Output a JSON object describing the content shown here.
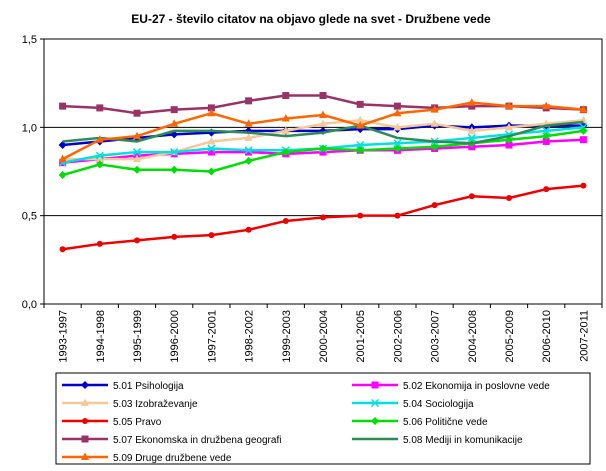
{
  "chart_data": {
    "type": "line",
    "title": "EU-27 - število citatov na objavo glede na svet - Družbene vede",
    "xlabel": "",
    "ylabel": "",
    "ylim": [
      0,
      1.5
    ],
    "yticks": [
      "0,0",
      "0,5",
      "1,0",
      "1,5"
    ],
    "ytick_values": [
      0,
      0.5,
      1.0,
      1.5
    ],
    "grid": "horizontal",
    "legend_position": "bottom",
    "categories": [
      "1993-1997",
      "1994-1998",
      "1995-1999",
      "1996-2000",
      "1997-2001",
      "1998-2002",
      "1999-2003",
      "2000-2004",
      "2001-2005",
      "2002-2006",
      "2003-2007",
      "2004-2008",
      "2005-2009",
      "2006-2010",
      "2007-2011"
    ],
    "series": [
      {
        "name": "5.01 Psihologija",
        "color": "#0000cc",
        "marker": "diamond",
        "values": [
          0.9,
          0.92,
          0.94,
          0.96,
          0.97,
          0.98,
          0.98,
          0.98,
          0.99,
          0.99,
          1.01,
          1.0,
          1.01,
          1.01,
          1.01
        ]
      },
      {
        "name": "5.02 Ekonomija in poslovne vede",
        "color": "#ff00ff",
        "marker": "square",
        "values": [
          0.8,
          0.82,
          0.84,
          0.85,
          0.86,
          0.86,
          0.85,
          0.86,
          0.87,
          0.87,
          0.88,
          0.89,
          0.9,
          0.92,
          0.93
        ]
      },
      {
        "name": "5.03 Izobraževanje",
        "color": "#f5c89a",
        "marker": "triangle",
        "values": [
          0.82,
          0.82,
          0.82,
          0.86,
          0.92,
          0.94,
          0.98,
          1.02,
          1.04,
          1.0,
          1.02,
          0.98,
          1.0,
          1.02,
          1.04
        ]
      },
      {
        "name": "5.04 Sociologija",
        "color": "#00e0e0",
        "marker": "x",
        "values": [
          0.8,
          0.84,
          0.86,
          0.86,
          0.88,
          0.87,
          0.87,
          0.88,
          0.9,
          0.91,
          0.92,
          0.94,
          0.96,
          0.98,
          1.0
        ]
      },
      {
        "name": "5.05 Pravo",
        "color": "#ee0000",
        "marker": "circle",
        "values": [
          0.31,
          0.34,
          0.36,
          0.38,
          0.39,
          0.42,
          0.47,
          0.49,
          0.5,
          0.5,
          0.56,
          0.61,
          0.6,
          0.65,
          0.67
        ]
      },
      {
        "name": "5.06 Politične vede",
        "color": "#00dd00",
        "marker": "diamond",
        "values": [
          0.73,
          0.79,
          0.76,
          0.76,
          0.75,
          0.81,
          0.86,
          0.88,
          0.87,
          0.88,
          0.89,
          0.91,
          0.93,
          0.95,
          0.98
        ]
      },
      {
        "name": "5.07 Ekonomska in družbena geografi",
        "color": "#993366",
        "marker": "square",
        "values": [
          1.12,
          1.11,
          1.08,
          1.1,
          1.11,
          1.15,
          1.18,
          1.18,
          1.13,
          1.12,
          1.11,
          1.12,
          1.12,
          1.11,
          1.1
        ]
      },
      {
        "name": "5.08 Mediji in komunikacije",
        "color": "#2e8b57",
        "marker": "none",
        "values": [
          0.92,
          0.94,
          0.92,
          0.98,
          0.98,
          0.97,
          0.95,
          0.97,
          1.01,
          0.94,
          0.92,
          0.91,
          0.95,
          1.01,
          1.03
        ]
      },
      {
        "name": "5.09 Druge družbene vede",
        "color": "#ff6600",
        "marker": "triangle",
        "values": [
          0.82,
          0.93,
          0.95,
          1.02,
          1.08,
          1.02,
          1.05,
          1.07,
          1.01,
          1.08,
          1.1,
          1.14,
          1.12,
          1.12,
          1.1
        ]
      }
    ]
  }
}
